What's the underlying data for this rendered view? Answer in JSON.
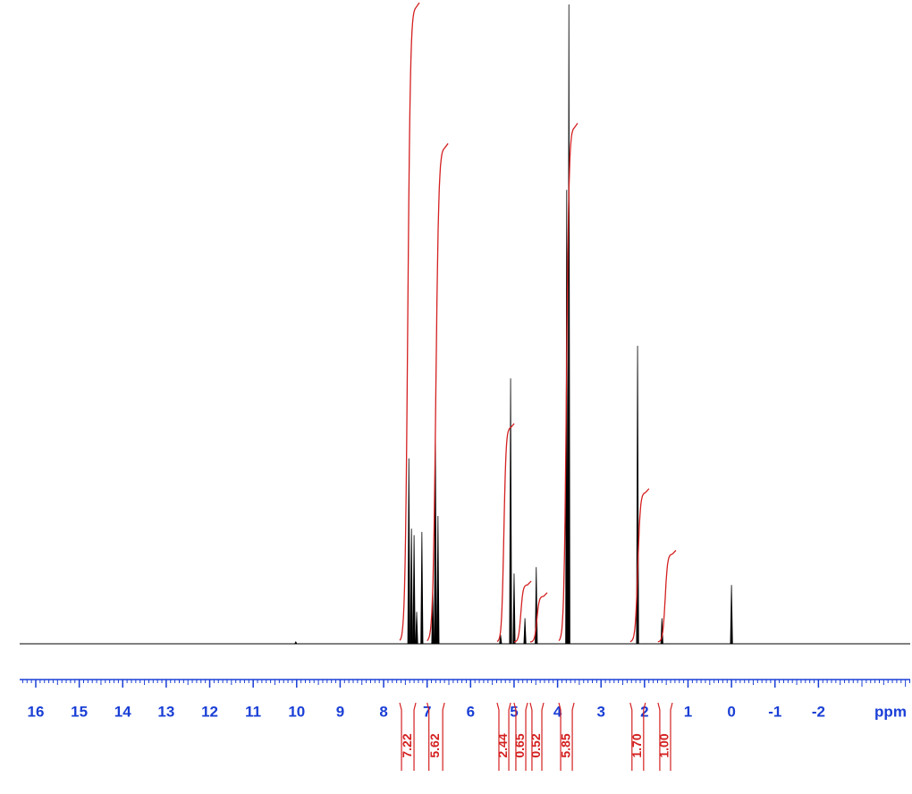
{
  "chart_data": {
    "type": "spectrum",
    "x_label": "ppm",
    "xlim": [
      16.37,
      -4.11
    ],
    "ylim": [
      0,
      100
    ],
    "xticks": [
      16,
      15,
      14,
      13,
      12,
      11,
      10,
      9,
      8,
      7,
      6,
      5,
      4,
      3,
      2,
      1,
      0,
      -1,
      -2
    ],
    "xminor_step": 0.1,
    "color": "#000000",
    "integral_color": "#d42020",
    "tick_color": "#1a3fd6",
    "x": [
      10.02,
      7.42,
      7.36,
      7.3,
      7.24,
      7.12,
      6.87,
      6.81,
      6.75,
      5.31,
      5.08,
      5.0,
      4.75,
      4.49,
      3.79,
      3.74,
      2.16,
      1.6,
      0.0
    ],
    "values": [
      0.3,
      29,
      18,
      17,
      5,
      17.5,
      8,
      34,
      20,
      1.4,
      41.5,
      11,
      4,
      12,
      71,
      100,
      46.6,
      4,
      9.2
    ],
    "integral_from": [
      7.63,
      7.0,
      5.39,
      5.0,
      4.63,
      3.97,
      2.33,
      1.69
    ],
    "integral_to": [
      7.26,
      6.6,
      5.08,
      4.69,
      4.32,
      3.62,
      1.98,
      1.36
    ],
    "integral_values": [
      7.22,
      5.62,
      2.44,
      0.65,
      0.52,
      5.85,
      1.7,
      1.0
    ],
    "integral_labels": [
      "7.22",
      "5.62",
      "2.44",
      "0.65",
      "0.52",
      "5.85",
      "1.70",
      "1.00"
    ]
  }
}
